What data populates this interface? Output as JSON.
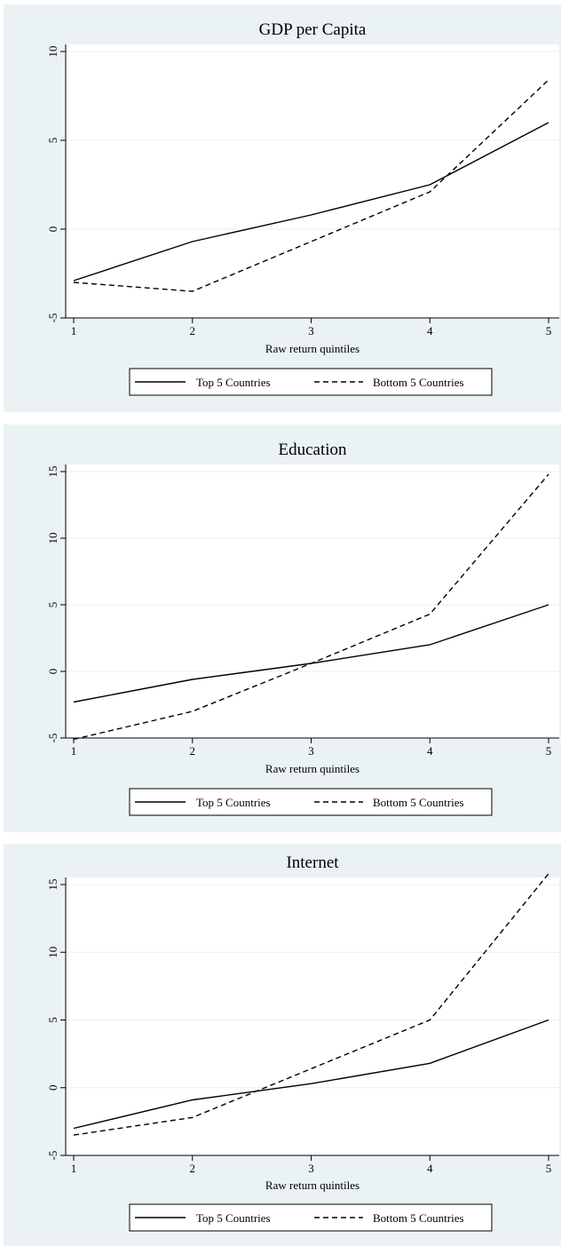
{
  "chart_data": [
    {
      "type": "line",
      "title": "GDP per Capita",
      "xlabel": "Raw return quintiles",
      "ylabel": "",
      "x": [
        1,
        2,
        3,
        4,
        5
      ],
      "xlim": [
        1,
        5
      ],
      "ylim": [
        -5,
        10
      ],
      "yticks": [
        "-5",
        "0",
        "5",
        "10"
      ],
      "xticks": [
        "1",
        "2",
        "3",
        "4",
        "5"
      ],
      "grid": true,
      "legend_position": "bottom",
      "series": [
        {
          "name": "Top 5 Countries",
          "style": "solid",
          "values": [
            -2.9,
            -0.7,
            0.8,
            2.5,
            6.0
          ]
        },
        {
          "name": "Bottom 5 Countries",
          "style": "dashed",
          "values": [
            -3.0,
            -3.5,
            -0.7,
            2.1,
            8.4
          ]
        }
      ]
    },
    {
      "type": "line",
      "title": "Education",
      "xlabel": "Raw return quintiles",
      "ylabel": "",
      "x": [
        1,
        2,
        3,
        4,
        5
      ],
      "xlim": [
        1,
        5
      ],
      "ylim": [
        -5,
        15
      ],
      "yticks": [
        "-5",
        "0",
        "5",
        "10",
        "15"
      ],
      "xticks": [
        "1",
        "2",
        "3",
        "4",
        "5"
      ],
      "grid": true,
      "legend_position": "bottom",
      "series": [
        {
          "name": "Top 5 Countries",
          "style": "solid",
          "values": [
            -2.3,
            -0.6,
            0.6,
            2.0,
            5.0
          ]
        },
        {
          "name": "Bottom 5 Countries",
          "style": "dashed",
          "values": [
            -5.1,
            -3.0,
            0.6,
            4.3,
            14.8
          ]
        }
      ]
    },
    {
      "type": "line",
      "title": "Internet",
      "xlabel": "Raw return quintiles",
      "ylabel": "",
      "x": [
        1,
        2,
        3,
        4,
        5
      ],
      "xlim": [
        1,
        5
      ],
      "ylim": [
        -5,
        15
      ],
      "yticks": [
        "-5",
        "0",
        "5",
        "10",
        "15"
      ],
      "xticks": [
        "1",
        "2",
        "3",
        "4",
        "5"
      ],
      "grid": true,
      "legend_position": "bottom",
      "series": [
        {
          "name": "Top 5 Countries",
          "style": "solid",
          "values": [
            -3.0,
            -0.9,
            0.3,
            1.8,
            5.0
          ]
        },
        {
          "name": "Bottom 5 Countries",
          "style": "dashed",
          "values": [
            -3.5,
            -2.2,
            1.4,
            5.0,
            15.8
          ]
        }
      ]
    }
  ]
}
